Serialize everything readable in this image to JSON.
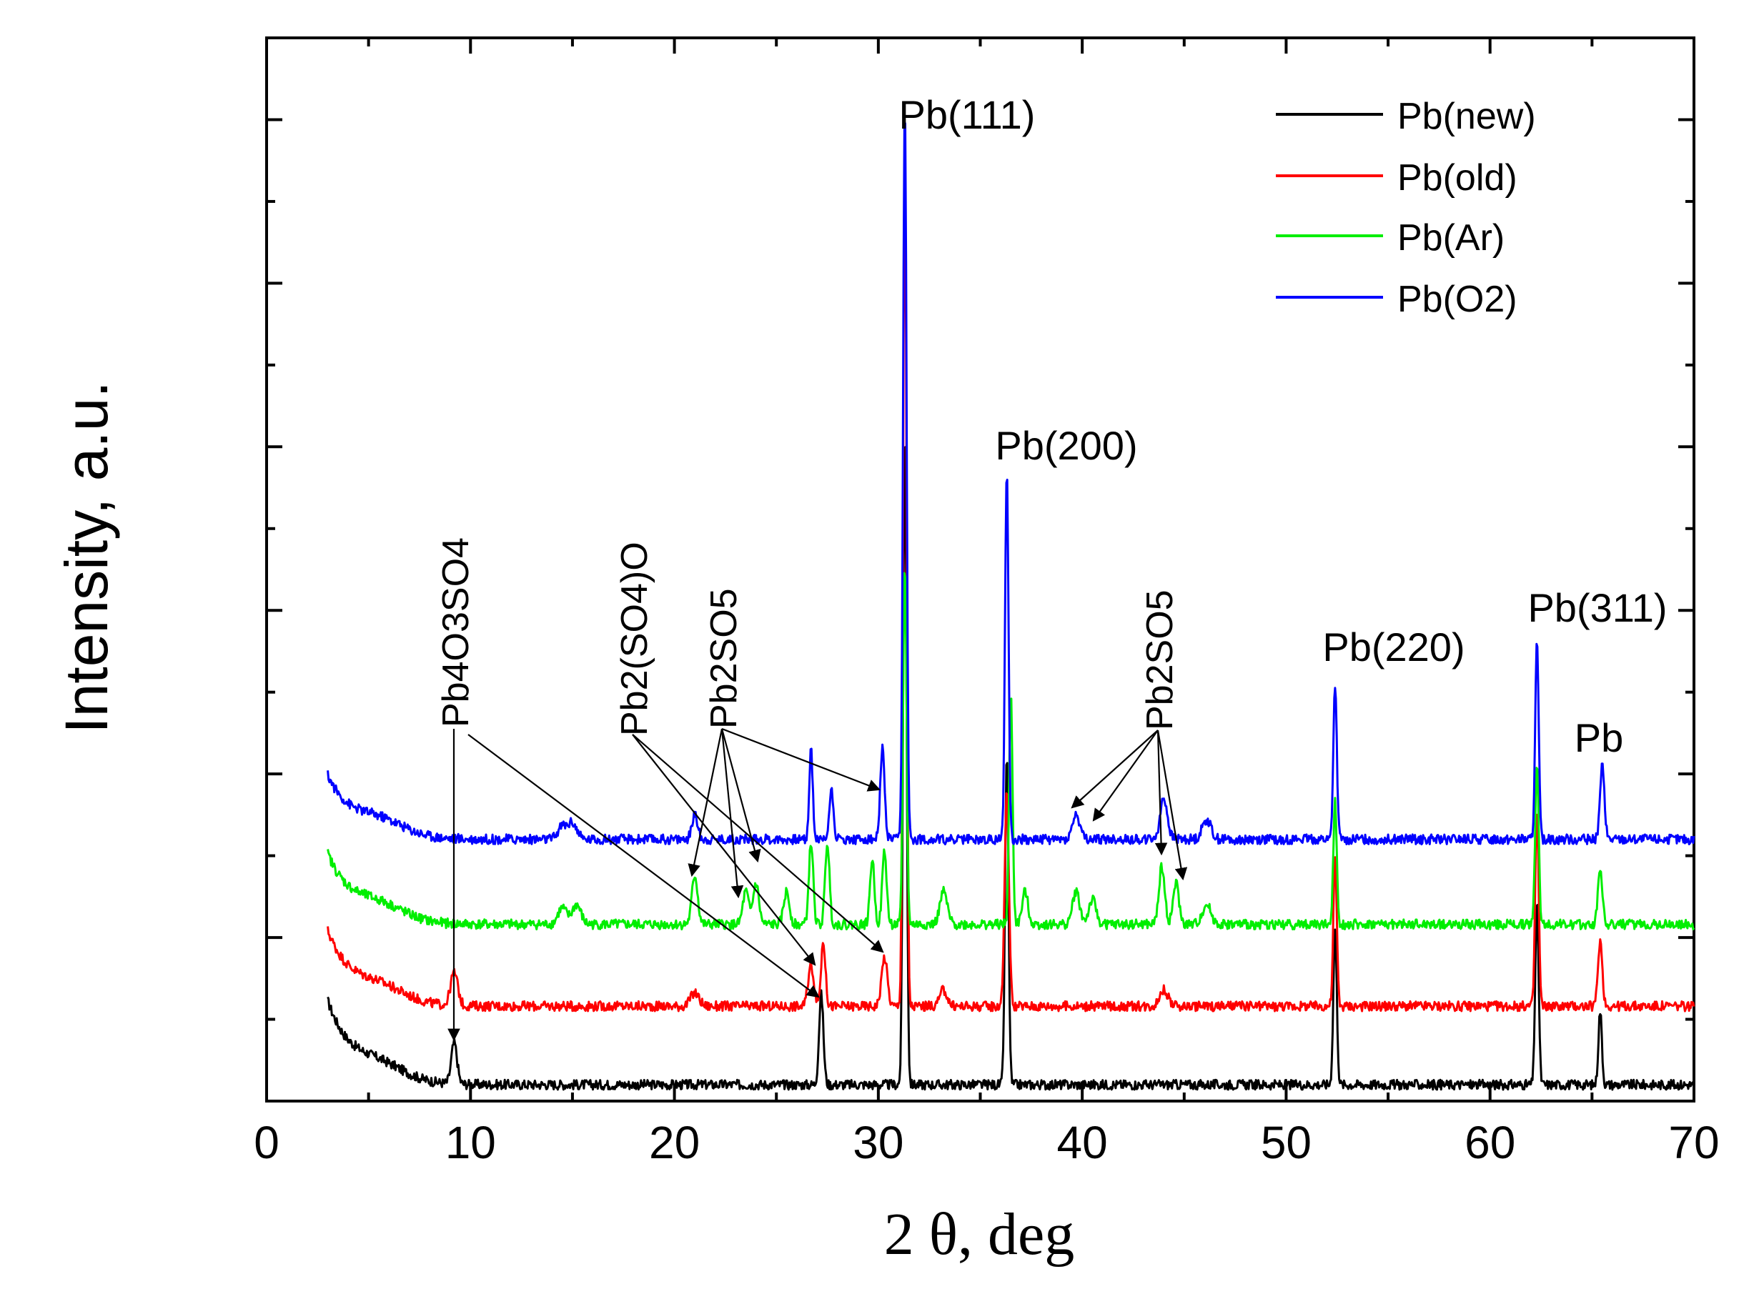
{
  "chart_data": {
    "type": "line",
    "title": "",
    "xlabel": "2 θ, deg",
    "ylabel": "Intensity, a.u.",
    "xlim": [
      0,
      70
    ],
    "ylim": [
      0,
      650
    ],
    "x_ticks": [
      "0",
      "10",
      "20",
      "30",
      "40",
      "50",
      "60",
      "70"
    ],
    "y_tick_labels": "none (unlabeled minor/major ticks)",
    "legend": {
      "placement": "top-right",
      "entries": [
        {
          "name": "Pb(new)",
          "color": "#000000"
        },
        {
          "name": "Pb(old)",
          "color": "#ff0000"
        },
        {
          "name": "Pb(Ar)",
          "color": "#00ee00"
        },
        {
          "name": "Pb(O2)",
          "color": "#0000ff"
        }
      ]
    },
    "series": [
      {
        "name": "Pb(new)",
        "color": "#000000",
        "baseline": 10,
        "start_rise": 50,
        "peaks": [
          [
            9.2,
            25,
            0.2
          ],
          [
            27.2,
            55,
            0.15
          ],
          [
            31.3,
            400,
            0.12
          ],
          [
            36.3,
            200,
            0.12
          ],
          [
            52.4,
            95,
            0.12
          ],
          [
            62.3,
            110,
            0.12
          ],
          [
            65.4,
            45,
            0.12
          ]
        ]
      },
      {
        "name": "Pb(old)",
        "color": "#ff0000",
        "baseline": 58,
        "start_rise": 45,
        "peaks": [
          [
            9.2,
            20,
            0.25
          ],
          [
            21.0,
            8,
            0.3
          ],
          [
            26.7,
            25,
            0.2
          ],
          [
            27.3,
            40,
            0.15
          ],
          [
            30.3,
            30,
            0.2
          ],
          [
            31.3,
            520,
            0.12
          ],
          [
            33.2,
            10,
            0.25
          ],
          [
            36.3,
            130,
            0.15
          ],
          [
            44.0,
            10,
            0.3
          ],
          [
            52.4,
            90,
            0.12
          ],
          [
            62.3,
            120,
            0.12
          ],
          [
            65.4,
            40,
            0.15
          ]
        ]
      },
      {
        "name": "Pb(Ar)",
        "color": "#00ee00",
        "baseline": 108,
        "start_rise": 42,
        "peaks": [
          [
            14.5,
            10,
            0.3
          ],
          [
            15.2,
            12,
            0.3
          ],
          [
            21.0,
            30,
            0.2
          ],
          [
            23.5,
            20,
            0.2
          ],
          [
            24.0,
            25,
            0.2
          ],
          [
            25.5,
            20,
            0.2
          ],
          [
            26.7,
            50,
            0.15
          ],
          [
            27.5,
            50,
            0.15
          ],
          [
            29.7,
            40,
            0.15
          ],
          [
            30.3,
            45,
            0.15
          ],
          [
            31.3,
            220,
            0.12
          ],
          [
            33.2,
            20,
            0.25
          ],
          [
            36.5,
            140,
            0.12
          ],
          [
            37.2,
            20,
            0.2
          ],
          [
            39.7,
            20,
            0.25
          ],
          [
            40.5,
            15,
            0.25
          ],
          [
            43.9,
            35,
            0.2
          ],
          [
            44.6,
            25,
            0.2
          ],
          [
            46.1,
            12,
            0.3
          ],
          [
            52.4,
            75,
            0.12
          ],
          [
            62.3,
            100,
            0.12
          ],
          [
            65.4,
            35,
            0.15
          ]
        ]
      },
      {
        "name": "Pb(O2)",
        "color": "#0000ff",
        "baseline": 160,
        "start_rise": 38,
        "peaks": [
          [
            14.5,
            8,
            0.3
          ],
          [
            15.0,
            10,
            0.3
          ],
          [
            21.0,
            15,
            0.2
          ],
          [
            26.7,
            55,
            0.12
          ],
          [
            27.7,
            30,
            0.15
          ],
          [
            30.2,
            55,
            0.15
          ],
          [
            31.3,
            450,
            0.12
          ],
          [
            36.3,
            225,
            0.12
          ],
          [
            39.7,
            15,
            0.25
          ],
          [
            44.0,
            25,
            0.25
          ],
          [
            46.1,
            12,
            0.3
          ],
          [
            52.4,
            95,
            0.12
          ],
          [
            62.3,
            120,
            0.12
          ],
          [
            65.5,
            45,
            0.15
          ]
        ]
      }
    ],
    "annotations": [
      {
        "text": "Pb(111)"
      },
      {
        "text": "Pb(200)"
      },
      {
        "text": "Pb(220)"
      },
      {
        "text": "Pb(311)"
      },
      {
        "text": "Pb"
      },
      {
        "text": "Pb4O3SO4"
      },
      {
        "text": "Pb2(SO4)O"
      },
      {
        "text": "Pb2SO5"
      },
      {
        "text": "Pb2SO5"
      }
    ]
  }
}
